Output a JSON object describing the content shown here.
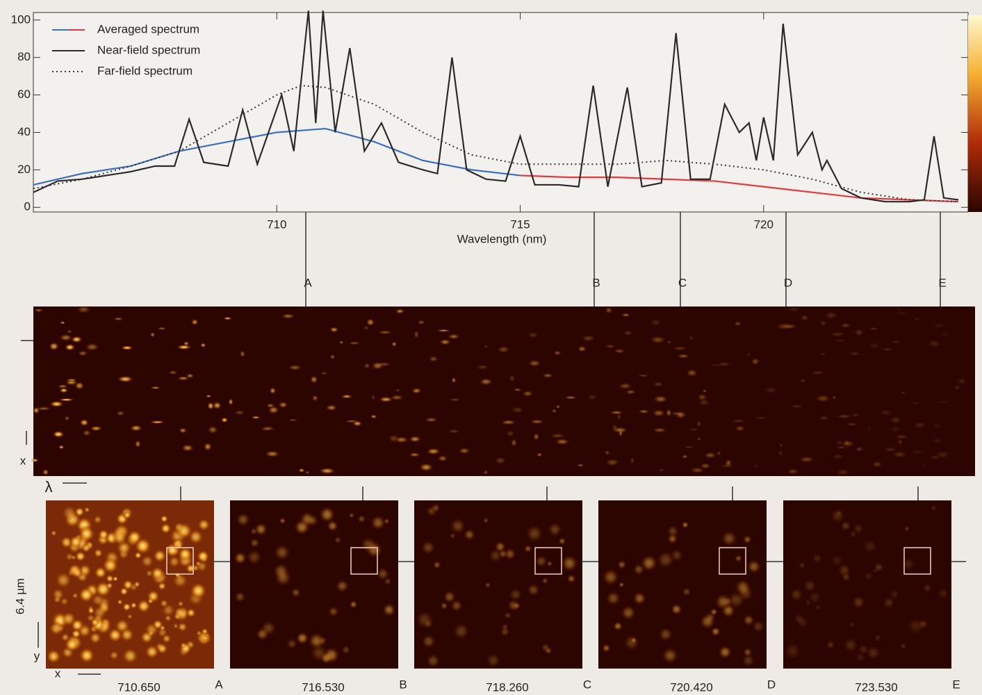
{
  "chart_data": {
    "type": "line",
    "xlabel": "Wavelength (nm)",
    "xlim": [
      705,
      724.2
    ],
    "ylim": [
      -2.5,
      104
    ],
    "xticks": [
      710,
      715,
      720
    ],
    "yticks": [
      0,
      20,
      40,
      60,
      80,
      100
    ],
    "legend": "upper left",
    "series": [
      {
        "name": "Averaged spectrum",
        "color": [
          "#3a6fc4",
          "#e8383d"
        ],
        "style": "solid",
        "x": [
          705,
          706,
          707,
          708,
          709,
          710,
          711,
          712,
          713,
          714,
          715,
          716,
          717,
          718,
          719,
          720,
          721,
          722,
          723,
          724
        ],
        "values": [
          12,
          18,
          22,
          30,
          35,
          40,
          42,
          35,
          25,
          20,
          17,
          16,
          16,
          15,
          14,
          11,
          8,
          5,
          4,
          3
        ]
      },
      {
        "name": "Near-field spectrum",
        "color": "#2a2a2a",
        "style": "solid",
        "x": [
          705.0,
          705.5,
          706.0,
          706.5,
          707.0,
          707.5,
          707.9,
          708.2,
          708.5,
          709.0,
          709.3,
          709.6,
          710.1,
          710.35,
          710.65,
          710.8,
          710.95,
          711.2,
          711.5,
          711.8,
          712.15,
          712.5,
          713.0,
          713.3,
          713.6,
          713.9,
          714.3,
          714.7,
          715.0,
          715.3,
          715.8,
          716.2,
          716.5,
          716.8,
          717.2,
          717.5,
          717.9,
          718.2,
          718.5,
          718.9,
          719.2,
          719.5,
          719.7,
          719.85,
          720.0,
          720.2,
          720.4,
          720.7,
          721.0,
          721.2,
          721.3,
          721.6,
          722.0,
          722.5,
          723.0,
          723.3,
          723.5,
          723.7,
          724.0
        ],
        "values": [
          8,
          14,
          15,
          17,
          19,
          22,
          22,
          47,
          24,
          22,
          52,
          23,
          60,
          30,
          105,
          45,
          105,
          40,
          85,
          30,
          45,
          24,
          20,
          18,
          80,
          20,
          15,
          14,
          38,
          12,
          12,
          11,
          65,
          11,
          64,
          11,
          13,
          93,
          15,
          15,
          55,
          40,
          45,
          25,
          48,
          25,
          98,
          28,
          40,
          20,
          25,
          10,
          5,
          3,
          3,
          4,
          38,
          5,
          4
        ]
      },
      {
        "name": "Far-field spectrum",
        "color": "#333333",
        "style": "dotted",
        "x": [
          705,
          706,
          707,
          708,
          709,
          710,
          710.5,
          711,
          712,
          713,
          714,
          715,
          716,
          717,
          718,
          719,
          720,
          721,
          722,
          723,
          724
        ],
        "values": [
          10,
          15,
          22,
          30,
          45,
          60,
          65,
          64,
          55,
          40,
          28,
          23,
          23,
          23,
          25,
          23,
          20,
          15,
          8,
          4,
          3
        ]
      }
    ],
    "markers": [
      "A",
      "B",
      "C",
      "D",
      "E"
    ],
    "image_axes": {
      "x": "x",
      "lambda": "λ",
      "y": "y",
      "scale": "6.4 µm"
    },
    "panels": [
      {
        "wavelength": "710.650",
        "label": "A"
      },
      {
        "wavelength": "716.530",
        "label": "B"
      },
      {
        "wavelength": "718.260",
        "label": "C"
      },
      {
        "wavelength": "720.420",
        "label": "D"
      },
      {
        "wavelength": "723.530",
        "label": "E"
      }
    ]
  }
}
